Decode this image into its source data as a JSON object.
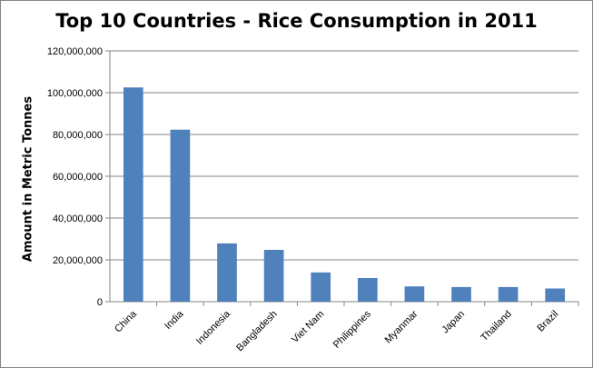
{
  "chart_data": {
    "type": "bar",
    "title": "Top 10 Countries - Rice Consumption in 2011",
    "xlabel": "",
    "ylabel": "Amount in Metric Tonnes",
    "categories": [
      "China",
      "India",
      "Indonesia",
      "Bangladesh",
      "Viet Nam",
      "Philippines",
      "Myanmar",
      "Japan",
      "Thailand",
      "Brazil"
    ],
    "values": [
      102500000,
      82300000,
      27900000,
      24800000,
      14000000,
      11300000,
      7300000,
      7000000,
      7000000,
      6300000
    ],
    "ylim": [
      0,
      120000000
    ],
    "yticks": [
      "0",
      "20,000,000",
      "40,000,000",
      "60,000,000",
      "80,000,000",
      "100,000,000",
      "120,000,000"
    ],
    "grid": true,
    "legend": "none",
    "bar_color": "#4f81bd"
  }
}
